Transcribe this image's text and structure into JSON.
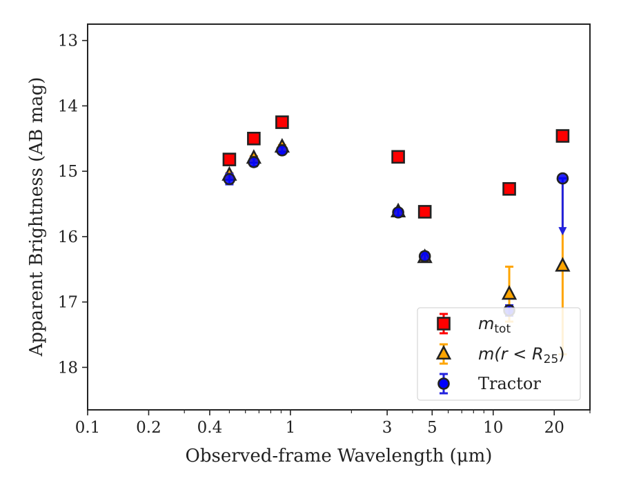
{
  "chart_data": {
    "type": "scatter",
    "xlabel": "Observed-frame Wavelength (μm)",
    "ylabel": "Apparent Brightness (AB mag)",
    "xscale": "log",
    "xlim": [
      0.1,
      30
    ],
    "ylim": [
      18.65,
      12.75
    ],
    "y_inverted": true,
    "xticks": [
      0.1,
      0.2,
      0.4,
      1,
      3,
      5,
      10,
      20
    ],
    "xtick_labels": [
      "0.1",
      "0.2",
      "0.4",
      "1",
      "3",
      "5",
      "10",
      "20"
    ],
    "yticks": [
      13,
      14,
      15,
      16,
      17,
      18
    ],
    "ytick_labels": [
      "13",
      "14",
      "15",
      "16",
      "17",
      "18"
    ],
    "grid": false,
    "legend_position": "bottom-right",
    "series": [
      {
        "name": "m_tot",
        "legend_label": "m",
        "legend_sub": "tot",
        "marker": "square",
        "face_color": "#ff0000",
        "edge_color": "#222222",
        "errbar_color": "#ff0000",
        "points": [
          {
            "x": 0.5,
            "y": 14.82,
            "yerr": 0.05
          },
          {
            "x": 0.66,
            "y": 14.5,
            "yerr": 0.05
          },
          {
            "x": 0.91,
            "y": 14.25,
            "yerr": 0.05
          },
          {
            "x": 3.4,
            "y": 14.78,
            "yerr": 0.05
          },
          {
            "x": 4.6,
            "y": 15.62,
            "yerr": 0.05
          },
          {
            "x": 12.0,
            "y": 15.27,
            "yerr": 0.06
          },
          {
            "x": 22.0,
            "y": 14.46,
            "yerr": 0.05
          }
        ]
      },
      {
        "name": "m(r<R25)",
        "legend_label": "m(r < R",
        "legend_sub": "25",
        "legend_suffix": ")",
        "marker": "triangle",
        "face_color": "#ffa500",
        "edge_color": "#222222",
        "errbar_color": "#ffa500",
        "points": [
          {
            "x": 0.5,
            "y": 15.06,
            "yerr": 0.03
          },
          {
            "x": 0.66,
            "y": 14.8,
            "yerr": 0.03
          },
          {
            "x": 0.91,
            "y": 14.63,
            "yerr": 0.03
          },
          {
            "x": 3.4,
            "y": 15.62,
            "yerr": 0.03
          },
          {
            "x": 4.6,
            "y": 16.32,
            "yerr": 0.03
          },
          {
            "x": 12.0,
            "y": 16.88,
            "yerr": 0.42
          },
          {
            "x": 22.0,
            "y": 16.45,
            "yerr": 1.35
          }
        ]
      },
      {
        "name": "Tractor",
        "legend_label": "Tractor",
        "marker": "circle",
        "face_color": "#0000ff",
        "edge_color": "#222222",
        "errbar_color": "#2222dd",
        "points": [
          {
            "x": 0.5,
            "y": 15.12,
            "yerr": 0.08
          },
          {
            "x": 0.66,
            "y": 14.86,
            "yerr": 0.06
          },
          {
            "x": 0.91,
            "y": 14.68,
            "yerr": 0.05
          },
          {
            "x": 3.4,
            "y": 15.63,
            "yerr": 0.05
          },
          {
            "x": 4.6,
            "y": 16.3,
            "yerr": 0.06
          },
          {
            "x": 12.0,
            "y": 17.13,
            "yerr": 0.08
          },
          {
            "x": 22.0,
            "y": 15.11,
            "upper_limit": true,
            "arrow_to": 15.95
          }
        ]
      }
    ]
  }
}
